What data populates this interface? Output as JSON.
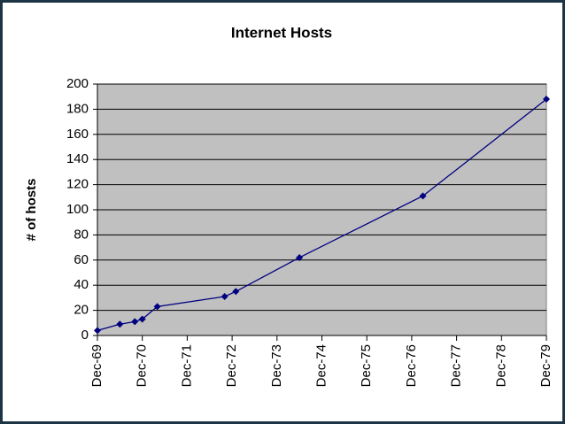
{
  "chart_data": {
    "type": "line",
    "title": "Internet Hosts",
    "y_label": "# of hosts",
    "x": [
      "Dec-69",
      "Jun-70",
      "Oct-70",
      "Dec-70",
      "Apr-71",
      "Oct-72",
      "Jan-73",
      "Jun-74",
      "Mar-77",
      "Dec-79"
    ],
    "values": [
      4,
      9,
      11,
      13,
      23,
      31,
      35,
      62,
      111,
      188
    ],
    "color": "#000080",
    "xlim": [
      "Dec-69",
      "Dec-79"
    ],
    "xticks": [
      "Dec-69",
      "Dec-70",
      "Dec-71",
      "Dec-72",
      "Dec-73",
      "Dec-74",
      "Dec-75",
      "Dec-76",
      "Dec-77",
      "Dec-78",
      "Dec-79"
    ],
    "ylim": [
      0,
      200
    ],
    "yticks": [
      0,
      20,
      40,
      60,
      80,
      100,
      120,
      140,
      160,
      180,
      200
    ],
    "grid": true
  }
}
